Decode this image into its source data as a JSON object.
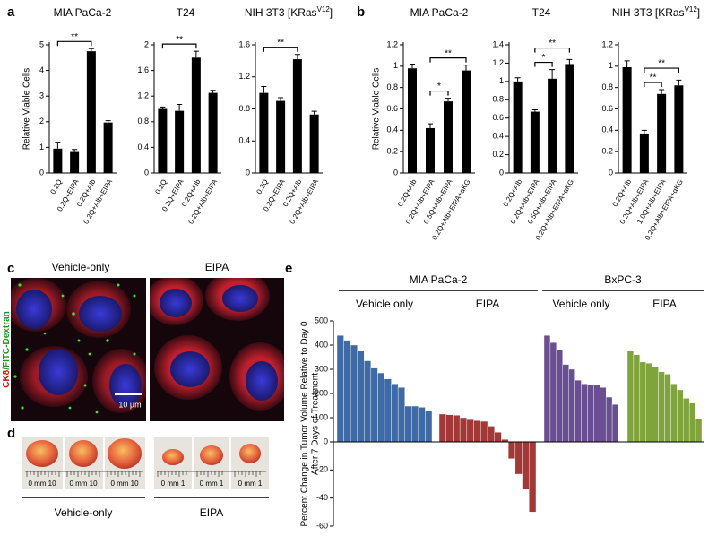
{
  "panel_labels": [
    "a",
    "b",
    "c",
    "d",
    "e"
  ],
  "chart_data": [
    {
      "type": "bar",
      "title": "MIA PaCa-2",
      "ylabel": "Relative Viable Cells",
      "categories": [
        "0.2Q",
        "0.2Q+EIPA",
        "0.2Q+Alb",
        "0.2Q+Alb+EIPA"
      ],
      "values": [
        0.95,
        0.82,
        4.75,
        1.97
      ],
      "errors": [
        0.25,
        0.1,
        0.1,
        0.07
      ],
      "ylim": [
        0,
        5
      ],
      "yticks": [
        0,
        1,
        2,
        3,
        4,
        5
      ],
      "color": "#000000",
      "significance": [
        {
          "between": [
            0,
            2
          ],
          "label": "**"
        }
      ]
    },
    {
      "type": "bar",
      "title": "T24",
      "categories": [
        "0.2Q",
        "0.2Q+EIPA",
        "0.2Q+Alb",
        "0.2Q+Alb+EIPA"
      ],
      "values": [
        1.0,
        0.97,
        1.8,
        1.25
      ],
      "errors": [
        0.03,
        0.1,
        0.1,
        0.04
      ],
      "ylim": [
        0,
        2
      ],
      "yticks": [
        0,
        0.4,
        0.8,
        1.2,
        1.6,
        2
      ],
      "color": "#000000",
      "significance": [
        {
          "between": [
            0,
            2
          ],
          "label": "**"
        }
      ]
    },
    {
      "type": "bar",
      "title": [
        "NIH 3T3 [KRas",
        "V12",
        "]"
      ],
      "categories": [
        "0.2Q",
        "0.2Q+EIPA",
        "0.2Q+Alb",
        "0.2Q+Alb+EIPA"
      ],
      "values": [
        1.0,
        0.9,
        1.42,
        0.73
      ],
      "errors": [
        0.08,
        0.04,
        0.06,
        0.04
      ],
      "ylim": [
        0,
        1.6
      ],
      "yticks": [
        0,
        0.4,
        0.8,
        1.2,
        1.6
      ],
      "color": "#000000",
      "significance": [
        {
          "between": [
            0,
            2
          ],
          "label": "**"
        }
      ]
    },
    {
      "type": "bar",
      "title": "MIA PaCa-2",
      "ylabel": "Relative Viable Cells",
      "categories": [
        "0.2Q+Alb",
        "0.2Q+Alb+EIPA",
        "0.5Q+Alb+EIPA",
        "0.2Q+Alb+EIPA+αKG"
      ],
      "values": [
        0.98,
        0.42,
        0.67,
        0.96
      ],
      "errors": [
        0.04,
        0.04,
        0.03,
        0.05
      ],
      "ylim": [
        0,
        1.2
      ],
      "yticks": [
        0,
        0.2,
        0.4,
        0.6,
        0.8,
        1,
        1.2
      ],
      "color": "#000000",
      "significance": [
        {
          "between": [
            1,
            2
          ],
          "label": "*"
        },
        {
          "between": [
            1,
            3
          ],
          "label": "**"
        }
      ]
    },
    {
      "type": "bar",
      "title": "T24",
      "categories": [
        "0.2Q+Alb",
        "0.2Q+Alb+EIPA",
        "0.5Q+Alb+EIPA",
        "0.2Q+Alb+EIPA+αKG"
      ],
      "values": [
        1.0,
        0.67,
        1.03,
        1.19
      ],
      "errors": [
        0.04,
        0.02,
        0.1,
        0.05
      ],
      "ylim": [
        0,
        1.4
      ],
      "yticks": [
        0,
        0.2,
        0.4,
        0.6,
        0.8,
        1,
        1.2,
        1.4
      ],
      "color": "#000000",
      "significance": [
        {
          "between": [
            1,
            2
          ],
          "label": "*"
        },
        {
          "between": [
            1,
            3
          ],
          "label": "**"
        }
      ]
    },
    {
      "type": "bar",
      "title": [
        "NIH 3T3 [KRas",
        "V12",
        "]"
      ],
      "categories": [
        "0.2Q+Alb",
        "0.2Q+Alb+EIPA",
        "1.0Q+Alb+EIPA",
        "0.2Q+Alb+EIPA+αKG"
      ],
      "values": [
        0.99,
        0.37,
        0.74,
        0.82
      ],
      "errors": [
        0.06,
        0.03,
        0.04,
        0.05
      ],
      "ylim": [
        0,
        1.2
      ],
      "yticks": [
        0,
        0.2,
        0.4,
        0.6,
        0.8,
        1,
        1.2
      ],
      "color": "#000000",
      "significance": [
        {
          "between": [
            1,
            2
          ],
          "label": "**"
        },
        {
          "between": [
            1,
            3
          ],
          "label": "**"
        }
      ]
    },
    {
      "type": "waterfall",
      "ylabel": [
        "Percent Change in Tumor Volume Relative to Day 0",
        "After 7 Days of Treatment"
      ],
      "groups": [
        "MIA PaCa-2",
        "BxPC-3"
      ],
      "series": [
        {
          "name": "Vehicle only",
          "group": 0,
          "color": "#3e6aa6",
          "values": [
            440,
            420,
            400,
            375,
            335,
            305,
            285,
            260,
            240,
            225,
            148,
            148,
            143,
            130
          ]
        },
        {
          "name": "EIPA",
          "group": 0,
          "color": "#a33936",
          "values": [
            115,
            112,
            110,
            100,
            92,
            88,
            85,
            65,
            40,
            10,
            -12,
            -23,
            -34,
            -50
          ]
        },
        {
          "name": "Vehicle only",
          "group": 1,
          "color": "#6a4e92",
          "values": [
            440,
            410,
            380,
            320,
            300,
            255,
            240,
            235,
            235,
            225,
            185,
            155
          ]
        },
        {
          "name": "EIPA",
          "group": 1,
          "color": "#7fa43b",
          "values": [
            375,
            360,
            330,
            325,
            310,
            290,
            280,
            240,
            215,
            180,
            160,
            95
          ]
        }
      ],
      "ylim": [
        -60,
        500
      ],
      "yticks": [
        -60,
        -40,
        -20,
        0,
        100,
        200,
        300,
        400,
        500
      ]
    }
  ],
  "panel_c": {
    "columns": [
      "Vehicle-only",
      "EIPA"
    ],
    "stain": [
      "CK8",
      "/FITC-Dextran"
    ],
    "scale_bar": "10 µm"
  },
  "panel_d": {
    "ruler_labels": [
      "0 mm 10",
      "0 mm 10",
      "0 mm 10",
      "0 mm 1",
      "0 mm 1",
      "0 mm 1"
    ],
    "groups": [
      "Vehicle-only",
      "EIPA"
    ]
  }
}
